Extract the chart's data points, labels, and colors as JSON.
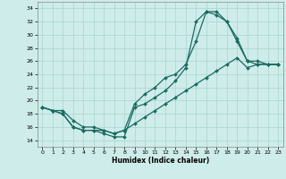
{
  "title": "",
  "xlabel": "Humidex (Indice chaleur)",
  "xlim": [
    -0.5,
    23.5
  ],
  "ylim": [
    13,
    35
  ],
  "xticks": [
    0,
    1,
    2,
    3,
    4,
    5,
    6,
    7,
    8,
    9,
    10,
    11,
    12,
    13,
    14,
    15,
    16,
    17,
    18,
    19,
    20,
    21,
    22,
    23
  ],
  "yticks": [
    14,
    16,
    18,
    20,
    22,
    24,
    26,
    28,
    30,
    32,
    34
  ],
  "bg_color": "#ceecea",
  "grid_color": "#aed8d4",
  "line_color": "#1a6b60",
  "line1_x": [
    0,
    1,
    2,
    3,
    4,
    5,
    6,
    7,
    8,
    9,
    10,
    11,
    12,
    13,
    14,
    15,
    16,
    17,
    18,
    19,
    20,
    21,
    22,
    23
  ],
  "line1_y": [
    19,
    18.5,
    18,
    16,
    15.5,
    15.5,
    15,
    14.5,
    14.5,
    19,
    19.5,
    20.5,
    21.5,
    23,
    25,
    32,
    33.5,
    33.5,
    32,
    29,
    26,
    25.5,
    25.5,
    25.5
  ],
  "line2_x": [
    0,
    1,
    2,
    3,
    4,
    5,
    6,
    7,
    8,
    9,
    10,
    11,
    12,
    13,
    14,
    15,
    16,
    17,
    18,
    19,
    20,
    21,
    22,
    23
  ],
  "line2_y": [
    19,
    18.5,
    18,
    16,
    15.5,
    15.5,
    15.5,
    15,
    15.5,
    19.5,
    21,
    22,
    23.5,
    24,
    25.5,
    29,
    33.5,
    33,
    32,
    29.5,
    26,
    26,
    25.5,
    25.5
  ],
  "line3_x": [
    0,
    1,
    2,
    3,
    4,
    5,
    6,
    7,
    8,
    9,
    10,
    11,
    12,
    13,
    14,
    15,
    16,
    17,
    18,
    19,
    20,
    21,
    22,
    23
  ],
  "line3_y": [
    19,
    18.5,
    18.5,
    17,
    16,
    16,
    15.5,
    15,
    15.5,
    16.5,
    17.5,
    18.5,
    19.5,
    20.5,
    21.5,
    22.5,
    23.5,
    24.5,
    25.5,
    26.5,
    25,
    25.5,
    25.5,
    25.5
  ]
}
